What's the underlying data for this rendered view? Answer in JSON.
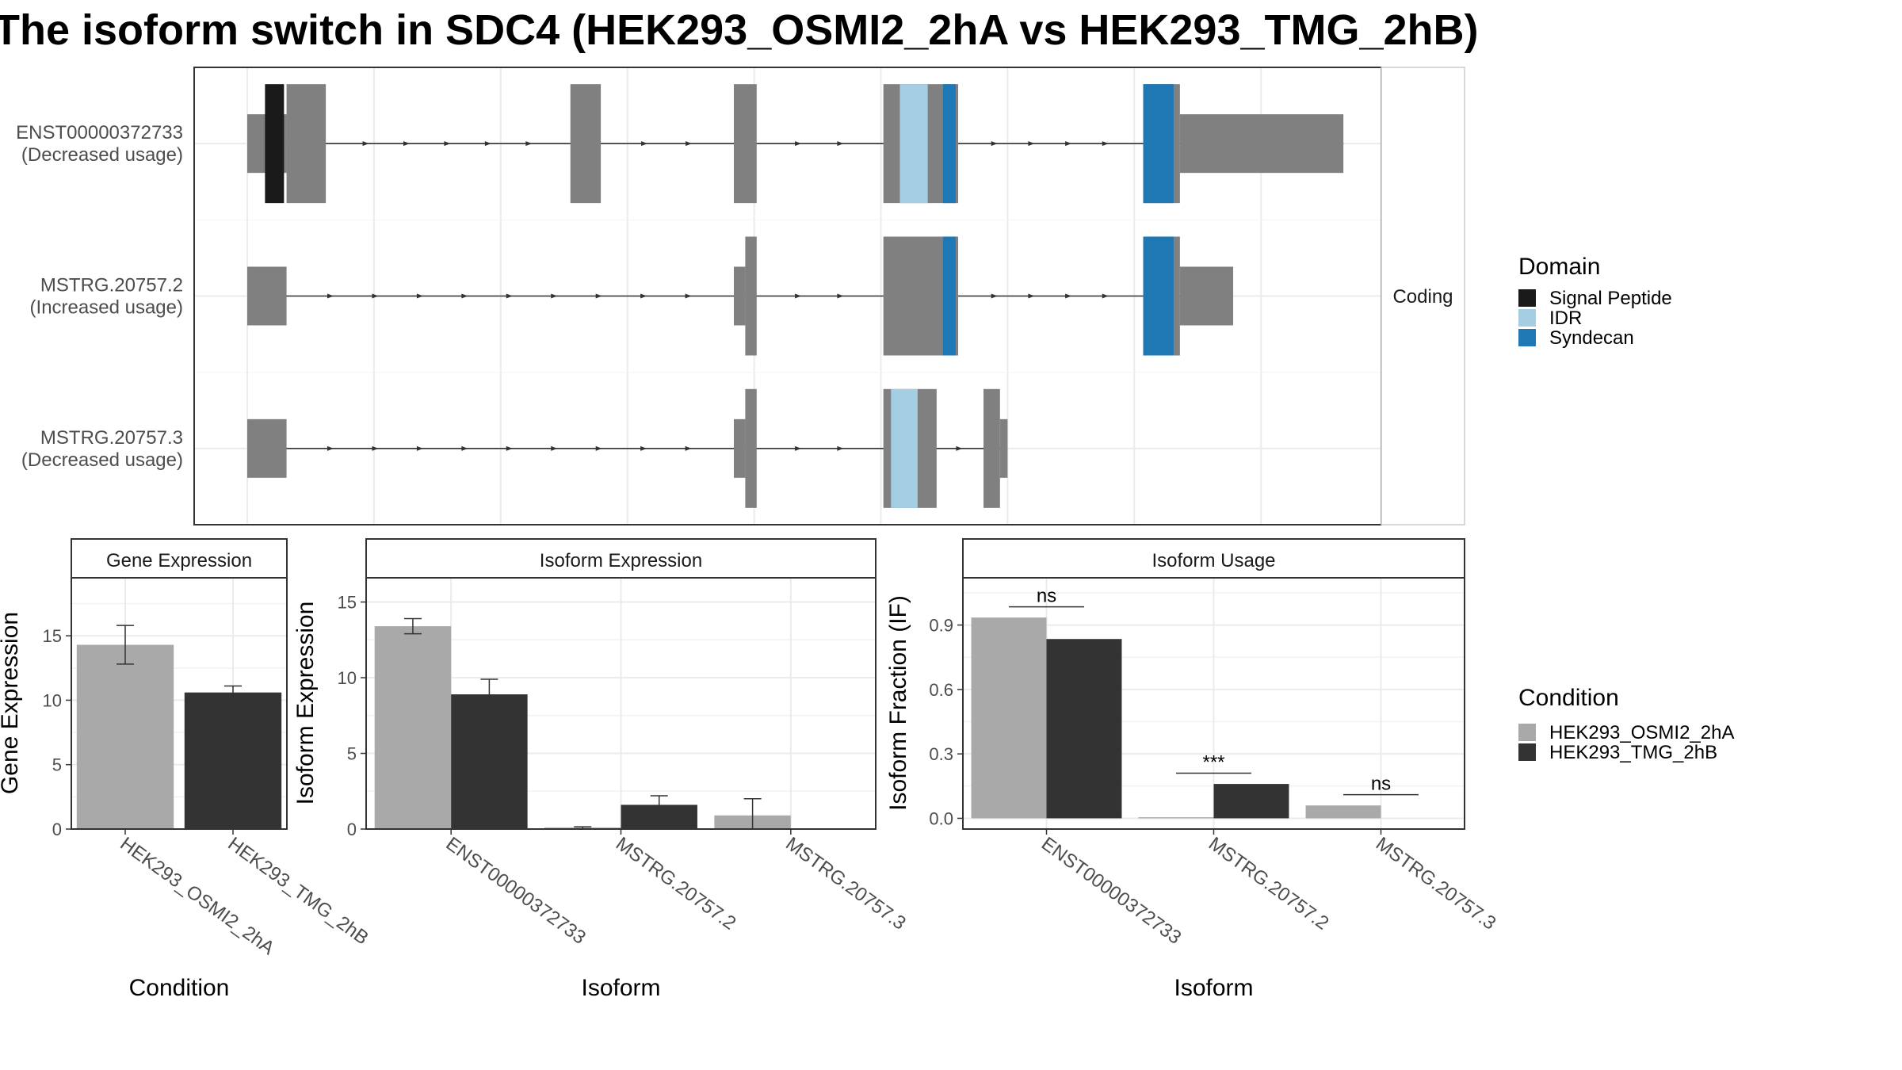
{
  "title": "The isoform switch in SDC4 (HEK293_OSMI2_2hA vs HEK293_TMG_2hB)",
  "structure_panel": {
    "strip_label": "Coding",
    "colors": {
      "exon": "#808080",
      "Signal Peptide": "#1a1a1a",
      "IDR": "#a6cee3",
      "Syndecan": "#1f78b4"
    },
    "isoforms": [
      {
        "name": "ENST00000372733",
        "status": "(Decreased usage)",
        "exons": [
          {
            "start": 0.0,
            "end": 0.31,
            "kind": "utr"
          },
          {
            "start": 0.31,
            "end": 0.62,
            "kind": "cds"
          },
          {
            "start": 2.55,
            "end": 2.79,
            "kind": "cds"
          },
          {
            "start": 3.84,
            "end": 4.02,
            "kind": "cds"
          },
          {
            "start": 5.02,
            "end": 5.61,
            "kind": "cds"
          },
          {
            "start": 7.07,
            "end": 7.36,
            "kind": "cds"
          },
          {
            "start": 7.36,
            "end": 8.65,
            "kind": "utr"
          }
        ],
        "domains": [
          {
            "domain": "Signal Peptide",
            "start": 0.14,
            "end": 0.29
          },
          {
            "domain": "IDR",
            "start": 5.15,
            "end": 5.37
          },
          {
            "domain": "Syndecan",
            "start": 5.49,
            "end": 5.59
          },
          {
            "domain": "Syndecan",
            "start": 7.07,
            "end": 7.31
          }
        ]
      },
      {
        "name": "MSTRG.20757.2",
        "status": "(Increased usage)",
        "exons": [
          {
            "start": 0.0,
            "end": 0.31,
            "kind": "utr"
          },
          {
            "start": 3.84,
            "end": 3.93,
            "kind": "utr"
          },
          {
            "start": 3.93,
            "end": 4.02,
            "kind": "cds"
          },
          {
            "start": 5.02,
            "end": 5.61,
            "kind": "cds"
          },
          {
            "start": 7.07,
            "end": 7.36,
            "kind": "cds"
          },
          {
            "start": 7.36,
            "end": 7.78,
            "kind": "utr"
          }
        ],
        "domains": [
          {
            "domain": "Syndecan",
            "start": 5.49,
            "end": 5.59
          },
          {
            "domain": "Syndecan",
            "start": 7.07,
            "end": 7.31
          }
        ]
      },
      {
        "name": "MSTRG.20757.3",
        "status": "(Decreased usage)",
        "exons": [
          {
            "start": 0.0,
            "end": 0.31,
            "kind": "utr"
          },
          {
            "start": 3.84,
            "end": 3.93,
            "kind": "utr"
          },
          {
            "start": 3.93,
            "end": 4.02,
            "kind": "cds"
          },
          {
            "start": 5.02,
            "end": 5.44,
            "kind": "cds"
          },
          {
            "start": 5.81,
            "end": 5.94,
            "kind": "cds"
          },
          {
            "start": 5.94,
            "end": 6.0,
            "kind": "utr"
          }
        ],
        "domains": [
          {
            "domain": "IDR",
            "start": 5.08,
            "end": 5.29
          }
        ]
      }
    ]
  },
  "legends": {
    "domain": {
      "title": "Domain",
      "entries": [
        {
          "label": "Signal Peptide",
          "color": "#1a1a1a"
        },
        {
          "label": "IDR",
          "color": "#a6cee3"
        },
        {
          "label": "Syndecan",
          "color": "#1f78b4"
        }
      ]
    },
    "condition": {
      "title": "Condition",
      "entries": [
        {
          "label": "HEK293_OSMI2_2hA",
          "color": "#a9a9a9"
        },
        {
          "label": "HEK293_TMG_2hB",
          "color": "#333333"
        }
      ]
    }
  },
  "chart_data": [
    {
      "type": "bar",
      "title": "Gene Expression",
      "xlabel": "Condition",
      "ylabel": "Gene Expression",
      "ylim": [
        0,
        19.5
      ],
      "yticks": [
        0,
        5,
        10,
        15
      ],
      "categories": [
        "HEK293_OSMI2_2hA",
        "HEK293_TMG_2hB"
      ],
      "values": [
        14.3,
        10.6
      ],
      "errors": [
        {
          "lo": 12.8,
          "hi": 15.8
        },
        {
          "lo": 10.1,
          "hi": 11.1
        }
      ],
      "colors": [
        "#a9a9a9",
        "#333333"
      ]
    },
    {
      "type": "bar",
      "title": "Isoform Expression",
      "xlabel": "Isoform",
      "ylabel": "Isoform Expression",
      "ylim": [
        0,
        16.6
      ],
      "yticks": [
        0,
        5,
        10,
        15
      ],
      "categories": [
        "ENST00000372733",
        "MSTRG.20757.2",
        "MSTRG.20757.3"
      ],
      "series": [
        {
          "name": "HEK293_OSMI2_2hA",
          "color": "#a9a9a9",
          "values": [
            13.4,
            0.1,
            0.9
          ],
          "errors": [
            {
              "lo": 12.9,
              "hi": 13.9
            },
            {
              "lo": 0.0,
              "hi": 0.15
            },
            {
              "lo": 0.0,
              "hi": 2.0
            }
          ]
        },
        {
          "name": "HEK293_TMG_2hB",
          "color": "#333333",
          "values": [
            8.9,
            1.6,
            0.0
          ],
          "errors": [
            {
              "lo": 7.9,
              "hi": 9.9
            },
            {
              "lo": 1.2,
              "hi": 2.2
            },
            {
              "lo": 0.0,
              "hi": 0.0
            }
          ]
        }
      ]
    },
    {
      "type": "bar",
      "title": "Isoform Usage",
      "xlabel": "Isoform",
      "ylabel": "Isoform Fraction (IF)",
      "ylim": [
        -0.05,
        1.12
      ],
      "yticks": [
        0.0,
        0.3,
        0.6,
        0.9
      ],
      "ytick_labels": [
        "0.0",
        "0.3",
        "0.6",
        "0.9"
      ],
      "categories": [
        "ENST00000372733",
        "MSTRG.20757.2",
        "MSTRG.20757.3"
      ],
      "series": [
        {
          "name": "HEK293_OSMI2_2hA",
          "color": "#a9a9a9",
          "values": [
            0.935,
            0.005,
            0.06
          ]
        },
        {
          "name": "HEK293_TMG_2hB",
          "color": "#333333",
          "values": [
            0.835,
            0.16,
            0.0
          ]
        }
      ],
      "significance": [
        {
          "label": "ns",
          "y": 0.985
        },
        {
          "label": "***",
          "y": 0.21
        },
        {
          "label": "ns",
          "y": 0.11
        }
      ]
    }
  ]
}
